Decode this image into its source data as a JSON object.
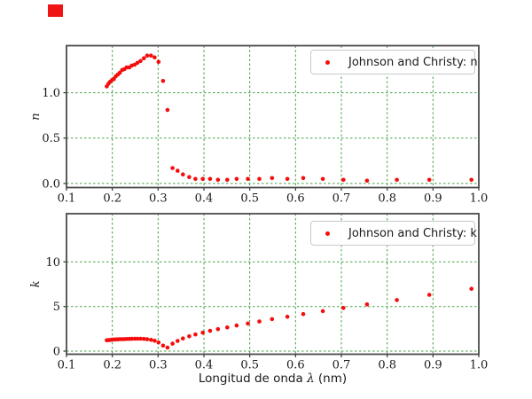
{
  "figure": {
    "background": "#ffffff",
    "corner_square_color": "#f01515",
    "xlabel": {
      "prefix": "Longitud de onda ",
      "symbol": "λ",
      "suffix": " (nm)"
    }
  },
  "colors": {
    "marker": "#f50d0d",
    "grid": "#44a044",
    "spine": "#4a4a4a",
    "tick": "#333333",
    "text": "#1a1a1a",
    "legend_border": "#c8c8c8"
  },
  "chart_data": [
    {
      "type": "scatter",
      "legend": "Johnson and Christy: n",
      "ylabel": "n",
      "xlim": [
        0.1,
        1.0
      ],
      "ylim": [
        -0.045,
        1.519
      ],
      "xticks": [
        0.1,
        0.2,
        0.3,
        0.4,
        0.5,
        0.6,
        0.7,
        0.8,
        0.9,
        1.0
      ],
      "xticklabels": [
        "0.1",
        "0.2",
        "0.3",
        "0.4",
        "0.5",
        "0.6",
        "0.7",
        "0.8",
        "0.9",
        "1.0"
      ],
      "yticks": [
        0.0,
        0.5,
        1.0
      ],
      "yticklabels": [
        "0.0",
        "0.5",
        "1.0"
      ],
      "grid": true,
      "legend_position": "upper right",
      "x": [
        0.1879,
        0.1916,
        0.1953,
        0.1993,
        0.2033,
        0.2073,
        0.2119,
        0.2164,
        0.2214,
        0.2262,
        0.2313,
        0.2371,
        0.2426,
        0.249,
        0.2551,
        0.2616,
        0.2689,
        0.2761,
        0.2844,
        0.2924,
        0.3009,
        0.3107,
        0.3204,
        0.3315,
        0.3425,
        0.3542,
        0.3679,
        0.3815,
        0.3974,
        0.4133,
        0.4305,
        0.4509,
        0.4714,
        0.4959,
        0.5209,
        0.5486,
        0.5821,
        0.6168,
        0.6595,
        0.7045,
        0.756,
        0.8211,
        0.892,
        0.984
      ],
      "y": [
        1.07,
        1.1,
        1.12,
        1.14,
        1.15,
        1.18,
        1.2,
        1.22,
        1.25,
        1.26,
        1.28,
        1.28,
        1.3,
        1.31,
        1.33,
        1.35,
        1.38,
        1.41,
        1.41,
        1.39,
        1.34,
        1.13,
        0.81,
        0.17,
        0.14,
        0.1,
        0.07,
        0.05,
        0.05,
        0.05,
        0.04,
        0.04,
        0.05,
        0.05,
        0.05,
        0.06,
        0.05,
        0.06,
        0.05,
        0.04,
        0.03,
        0.04,
        0.04,
        0.04
      ]
    },
    {
      "type": "scatter",
      "legend": "Johnson and Christy: k",
      "ylabel": "k",
      "xlim": [
        0.1,
        1.0
      ],
      "ylim": [
        -0.35,
        15.41
      ],
      "xticks": [
        0.1,
        0.2,
        0.3,
        0.4,
        0.5,
        0.6,
        0.7,
        0.8,
        0.9,
        1.0
      ],
      "xticklabels": [
        "0.1",
        "0.2",
        "0.3",
        "0.4",
        "0.5",
        "0.6",
        "0.7",
        "0.8",
        "0.9",
        "1.0"
      ],
      "yticks": [
        0,
        5,
        10
      ],
      "yticklabels": [
        "0",
        "5",
        "10"
      ],
      "grid": true,
      "legend_position": "upper right",
      "x": [
        0.1879,
        0.1916,
        0.1953,
        0.1993,
        0.2033,
        0.2073,
        0.2119,
        0.2164,
        0.2214,
        0.2262,
        0.2313,
        0.2371,
        0.2426,
        0.249,
        0.2551,
        0.2616,
        0.2689,
        0.2761,
        0.2844,
        0.2924,
        0.3009,
        0.3107,
        0.3204,
        0.3315,
        0.3425,
        0.3542,
        0.3679,
        0.3815,
        0.3974,
        0.4133,
        0.4305,
        0.4509,
        0.4714,
        0.4959,
        0.5209,
        0.5486,
        0.5821,
        0.6168,
        0.6595,
        0.7045,
        0.756,
        0.8211,
        0.892,
        0.984
      ],
      "y": [
        1.212,
        1.232,
        1.255,
        1.277,
        1.296,
        1.312,
        1.325,
        1.336,
        1.342,
        1.344,
        1.357,
        1.367,
        1.378,
        1.389,
        1.393,
        1.387,
        1.372,
        1.331,
        1.264,
        1.161,
        0.964,
        0.616,
        0.392,
        0.829,
        1.142,
        1.419,
        1.657,
        1.864,
        2.07,
        2.275,
        2.462,
        2.657,
        2.869,
        3.093,
        3.324,
        3.586,
        3.858,
        4.152,
        4.483,
        4.838,
        5.242,
        5.727,
        6.312,
        6.992
      ]
    }
  ]
}
